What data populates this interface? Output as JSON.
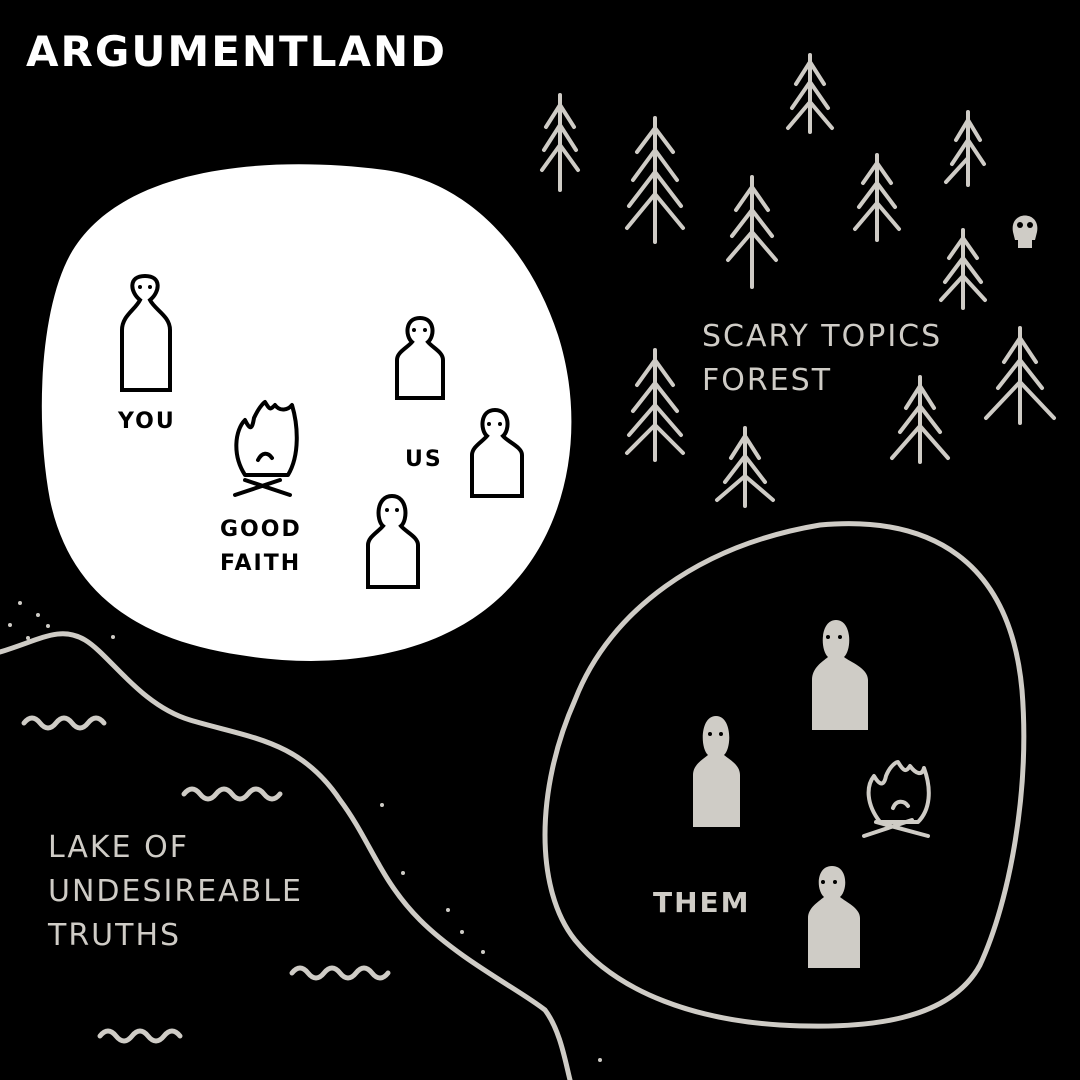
{
  "title": "ARGUMENTLAND",
  "regions": {
    "forest": {
      "line1": "SCARY TOPICS",
      "line2": "FOREST"
    },
    "lake": {
      "line1": "LAKE OF",
      "line2": "UNDESIREABLE",
      "line3": "TRUTHS"
    },
    "camp": {
      "you": "YOU",
      "us": "US",
      "good_faith_line1": "GOOD",
      "good_faith_line2": "FAITH"
    },
    "them": {
      "label": "THEM"
    }
  },
  "colors": {
    "background": "#000000",
    "spotlight": "#ffffff",
    "chalk": "#cfccc6",
    "figure_fill_them": "#cfccc6"
  },
  "icons": [
    "tree-icon",
    "skull-icon",
    "campfire-icon",
    "person-icon",
    "wave-icon"
  ]
}
